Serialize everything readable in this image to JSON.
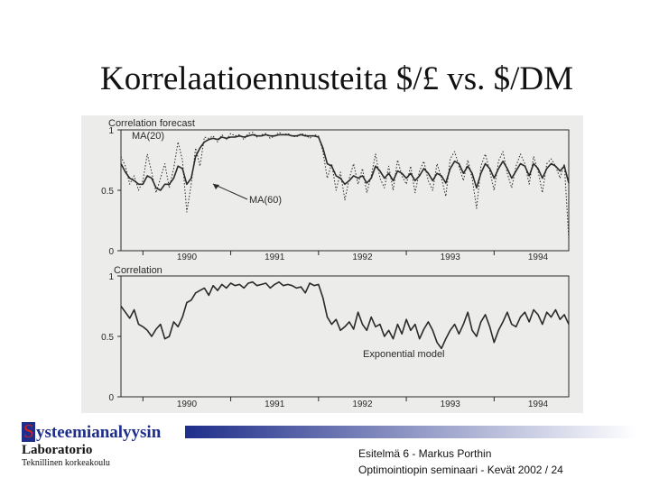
{
  "slide": {
    "title": "Korrelaatioennusteita $/£ vs. $/DM",
    "logo_initial": "S",
    "logo_rest": "ysteemianalyysin",
    "lab": "Laboratorio",
    "university": "Teknillinen korkeakoulu",
    "footer_line1": "Esitelmä 6 - Markus Porthin",
    "footer_line2": "Optimointiopin seminaari - Kevät 2002 / 24"
  },
  "colors": {
    "brand_blue": "#1f2e8a",
    "brand_red": "#d62020",
    "ink": "#2a2a2a"
  },
  "chart_data": [
    {
      "type": "line",
      "title": "Correlation forecast",
      "x_tick_labels": [
        "1990",
        "1991",
        "1992",
        "1993",
        "1994"
      ],
      "xlim": [
        1989.75,
        1994.85
      ],
      "ylim": [
        0,
        1
      ],
      "y_tick_labels": [
        "0",
        "0.5",
        "1"
      ],
      "grid": false,
      "annotations": [
        "MA(20)",
        "MA(60)"
      ],
      "series": [
        {
          "style": "dotted",
          "x": [
            1989.75,
            1989.8,
            1989.85,
            1989.9,
            1989.95,
            1990.0,
            1990.05,
            1990.1,
            1990.15,
            1990.2,
            1990.25,
            1990.3,
            1990.35,
            1990.4,
            1990.45,
            1990.5,
            1990.55,
            1990.6,
            1990.65,
            1990.7,
            1990.75,
            1990.8,
            1990.85,
            1990.9,
            1990.95,
            1991.0,
            1991.05,
            1991.1,
            1991.15,
            1991.2,
            1991.25,
            1991.3,
            1991.35,
            1991.4,
            1991.45,
            1991.5,
            1991.55,
            1991.6,
            1991.65,
            1991.7,
            1991.75,
            1991.8,
            1991.85,
            1991.9,
            1991.95,
            1992.0,
            1992.05,
            1992.1,
            1992.15,
            1992.2,
            1992.25,
            1992.3,
            1992.35,
            1992.4,
            1992.45,
            1992.5,
            1992.55,
            1992.6,
            1992.65,
            1992.7,
            1992.75,
            1992.8,
            1992.85,
            1992.9,
            1992.95,
            1993.0,
            1993.05,
            1993.1,
            1993.15,
            1993.2,
            1993.25,
            1993.3,
            1993.35,
            1993.4,
            1993.45,
            1993.5,
            1993.55,
            1993.6,
            1993.65,
            1993.7,
            1993.75,
            1993.8,
            1993.85,
            1993.9,
            1993.95,
            1994.0,
            1994.05,
            1994.1,
            1994.15,
            1994.2,
            1994.25,
            1994.3,
            1994.35,
            1994.4,
            1994.45,
            1994.5,
            1994.55,
            1994.6,
            1994.65,
            1994.7,
            1994.75,
            1994.8,
            1994.85
          ],
          "y": [
            0.78,
            0.7,
            0.55,
            0.62,
            0.5,
            0.58,
            0.8,
            0.65,
            0.48,
            0.6,
            0.72,
            0.52,
            0.68,
            0.9,
            0.75,
            0.32,
            0.55,
            0.85,
            0.7,
            0.94,
            0.93,
            0.95,
            0.9,
            0.96,
            0.92,
            0.97,
            0.95,
            0.96,
            0.92,
            0.97,
            0.98,
            0.94,
            0.96,
            0.97,
            0.93,
            0.95,
            0.98,
            0.96,
            0.97,
            0.95,
            0.94,
            0.97,
            0.96,
            0.93,
            0.96,
            0.95,
            0.82,
            0.6,
            0.72,
            0.5,
            0.65,
            0.42,
            0.6,
            0.72,
            0.55,
            0.68,
            0.48,
            0.62,
            0.8,
            0.6,
            0.52,
            0.7,
            0.5,
            0.75,
            0.62,
            0.55,
            0.7,
            0.48,
            0.66,
            0.74,
            0.58,
            0.5,
            0.72,
            0.6,
            0.45,
            0.76,
            0.82,
            0.7,
            0.58,
            0.75,
            0.6,
            0.35,
            0.7,
            0.8,
            0.66,
            0.5,
            0.74,
            0.82,
            0.64,
            0.52,
            0.7,
            0.8,
            0.72,
            0.55,
            0.78,
            0.66,
            0.48,
            0.72,
            0.76,
            0.7,
            0.6,
            0.72,
            0.1
          ]
        },
        {
          "style": "solid",
          "x": [
            1989.75,
            1989.8,
            1989.85,
            1989.9,
            1989.95,
            1990.0,
            1990.05,
            1990.1,
            1990.15,
            1990.2,
            1990.25,
            1990.3,
            1990.35,
            1990.4,
            1990.45,
            1990.5,
            1990.55,
            1990.6,
            1990.65,
            1990.7,
            1990.75,
            1990.8,
            1990.85,
            1990.9,
            1990.95,
            1991.0,
            1991.05,
            1991.1,
            1991.15,
            1991.2,
            1991.25,
            1991.3,
            1991.35,
            1991.4,
            1991.45,
            1991.5,
            1991.55,
            1991.6,
            1991.65,
            1991.7,
            1991.75,
            1991.8,
            1991.85,
            1991.9,
            1991.95,
            1992.0,
            1992.05,
            1992.1,
            1992.15,
            1992.2,
            1992.25,
            1992.3,
            1992.35,
            1992.4,
            1992.45,
            1992.5,
            1992.55,
            1992.6,
            1992.65,
            1992.7,
            1992.75,
            1992.8,
            1992.85,
            1992.9,
            1992.95,
            1993.0,
            1993.05,
            1993.1,
            1993.15,
            1993.2,
            1993.25,
            1993.3,
            1993.35,
            1993.4,
            1993.45,
            1993.5,
            1993.55,
            1993.6,
            1993.65,
            1993.7,
            1993.75,
            1993.8,
            1993.85,
            1993.9,
            1993.95,
            1994.0,
            1994.05,
            1994.1,
            1994.15,
            1994.2,
            1994.25,
            1994.3,
            1994.35,
            1994.4,
            1994.45,
            1994.5,
            1994.55,
            1994.6,
            1994.65,
            1994.7,
            1994.75,
            1994.8,
            1994.85
          ],
          "y": [
            0.72,
            0.65,
            0.6,
            0.58,
            0.55,
            0.55,
            0.62,
            0.6,
            0.52,
            0.5,
            0.55,
            0.55,
            0.6,
            0.7,
            0.68,
            0.55,
            0.6,
            0.78,
            0.85,
            0.9,
            0.92,
            0.93,
            0.92,
            0.94,
            0.93,
            0.94,
            0.94,
            0.95,
            0.94,
            0.95,
            0.96,
            0.95,
            0.95,
            0.96,
            0.95,
            0.95,
            0.96,
            0.96,
            0.96,
            0.95,
            0.95,
            0.96,
            0.95,
            0.95,
            0.95,
            0.94,
            0.85,
            0.72,
            0.7,
            0.62,
            0.6,
            0.55,
            0.58,
            0.62,
            0.6,
            0.62,
            0.56,
            0.6,
            0.7,
            0.66,
            0.6,
            0.64,
            0.58,
            0.66,
            0.64,
            0.6,
            0.64,
            0.58,
            0.62,
            0.68,
            0.64,
            0.58,
            0.64,
            0.62,
            0.56,
            0.68,
            0.74,
            0.72,
            0.64,
            0.7,
            0.64,
            0.52,
            0.64,
            0.72,
            0.68,
            0.6,
            0.68,
            0.74,
            0.68,
            0.6,
            0.66,
            0.72,
            0.7,
            0.62,
            0.72,
            0.68,
            0.6,
            0.68,
            0.72,
            0.7,
            0.66,
            0.7,
            0.56
          ]
        }
      ]
    },
    {
      "type": "line",
      "title": "Correlation",
      "x_tick_labels": [
        "1990",
        "1991",
        "1992",
        "1993",
        "1994"
      ],
      "xlim": [
        1989.75,
        1994.85
      ],
      "ylim": [
        0,
        1
      ],
      "y_tick_labels": [
        "0",
        "0.5",
        "1"
      ],
      "grid": false,
      "annotations": [
        "Exponential model"
      ],
      "series": [
        {
          "style": "solid",
          "x": [
            1989.75,
            1989.8,
            1989.85,
            1989.9,
            1989.95,
            1990.0,
            1990.05,
            1990.1,
            1990.15,
            1990.2,
            1990.25,
            1990.3,
            1990.35,
            1990.4,
            1990.45,
            1990.5,
            1990.55,
            1990.6,
            1990.65,
            1990.7,
            1990.75,
            1990.8,
            1990.85,
            1990.9,
            1990.95,
            1991.0,
            1991.05,
            1991.1,
            1991.15,
            1991.2,
            1991.25,
            1991.3,
            1991.35,
            1991.4,
            1991.45,
            1991.5,
            1991.55,
            1991.6,
            1991.65,
            1991.7,
            1991.75,
            1991.8,
            1991.85,
            1991.9,
            1991.95,
            1992.0,
            1992.05,
            1992.1,
            1992.15,
            1992.2,
            1992.25,
            1992.3,
            1992.35,
            1992.4,
            1992.45,
            1992.5,
            1992.55,
            1992.6,
            1992.65,
            1992.7,
            1992.75,
            1992.8,
            1992.85,
            1992.9,
            1992.95,
            1993.0,
            1993.05,
            1993.1,
            1993.15,
            1993.2,
            1993.25,
            1993.3,
            1993.35,
            1993.4,
            1993.45,
            1993.5,
            1993.55,
            1993.6,
            1993.65,
            1993.7,
            1993.75,
            1993.8,
            1993.85,
            1993.9,
            1993.95,
            1994.0,
            1994.05,
            1994.1,
            1994.15,
            1994.2,
            1994.25,
            1994.3,
            1994.35,
            1994.4,
            1994.45,
            1994.5,
            1994.55,
            1994.6,
            1994.65,
            1994.7,
            1994.75,
            1994.8,
            1994.85
          ],
          "y": [
            0.75,
            0.7,
            0.65,
            0.72,
            0.6,
            0.58,
            0.55,
            0.5,
            0.56,
            0.6,
            0.48,
            0.5,
            0.62,
            0.58,
            0.66,
            0.78,
            0.8,
            0.86,
            0.88,
            0.9,
            0.84,
            0.92,
            0.88,
            0.93,
            0.9,
            0.94,
            0.92,
            0.93,
            0.9,
            0.94,
            0.95,
            0.92,
            0.93,
            0.94,
            0.9,
            0.93,
            0.95,
            0.92,
            0.93,
            0.92,
            0.9,
            0.91,
            0.86,
            0.94,
            0.92,
            0.93,
            0.82,
            0.66,
            0.6,
            0.64,
            0.55,
            0.58,
            0.62,
            0.56,
            0.7,
            0.6,
            0.55,
            0.66,
            0.58,
            0.6,
            0.5,
            0.55,
            0.48,
            0.6,
            0.52,
            0.64,
            0.55,
            0.6,
            0.48,
            0.56,
            0.62,
            0.55,
            0.45,
            0.4,
            0.48,
            0.55,
            0.6,
            0.52,
            0.6,
            0.7,
            0.55,
            0.5,
            0.62,
            0.68,
            0.58,
            0.45,
            0.55,
            0.62,
            0.7,
            0.6,
            0.58,
            0.66,
            0.7,
            0.62,
            0.72,
            0.68,
            0.6,
            0.7,
            0.66,
            0.72,
            0.64,
            0.68,
            0.6
          ]
        }
      ]
    }
  ]
}
